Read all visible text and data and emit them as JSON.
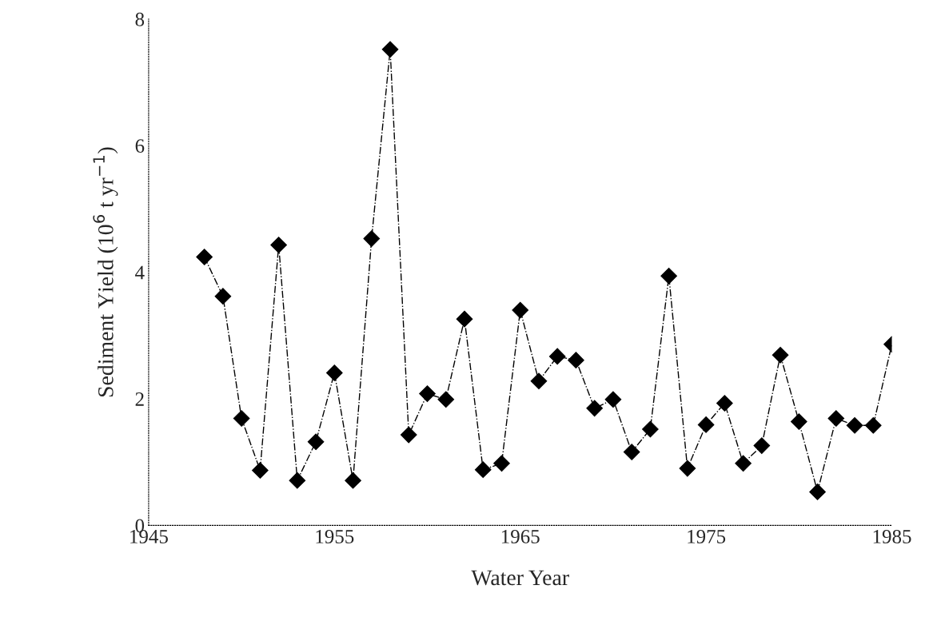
{
  "chart_data": {
    "type": "line",
    "xlabel": "Water Year",
    "ylabel": "Sediment Yield (10$^{6}$ t yr$^{−1}$)",
    "x": [
      1948,
      1949,
      1950,
      1951,
      1952,
      1953,
      1954,
      1955,
      1956,
      1957,
      1958,
      1959,
      1960,
      1961,
      1962,
      1963,
      1964,
      1965,
      1966,
      1967,
      1968,
      1969,
      1970,
      1971,
      1972,
      1973,
      1974,
      1975,
      1976,
      1977,
      1978,
      1979,
      1980,
      1981,
      1982,
      1983,
      1984,
      1985
    ],
    "series": [
      {
        "color": "#000000",
        "values": [
          4.24,
          3.62,
          1.69,
          0.87,
          4.43,
          0.71,
          1.32,
          2.41,
          0.71,
          4.53,
          7.52,
          1.43,
          2.08,
          1.99,
          3.26,
          0.88,
          0.98,
          3.4,
          2.28,
          2.67,
          2.61,
          1.85,
          1.99,
          1.16,
          1.52,
          3.94,
          0.9,
          1.59,
          1.93,
          0.98,
          1.26,
          2.69,
          1.64,
          0.53,
          1.69,
          1.58,
          1.58,
          2.86
        ]
      }
    ],
    "xlim": [
      1945,
      1985
    ],
    "xticks": [
      1945,
      1955,
      1965,
      1975,
      1985
    ],
    "ylim": [
      0,
      8
    ],
    "yticks": [
      0,
      2,
      4,
      6,
      8
    ],
    "marker": "diamond",
    "line_style": "dashed",
    "grid": false,
    "legend": false
  }
}
